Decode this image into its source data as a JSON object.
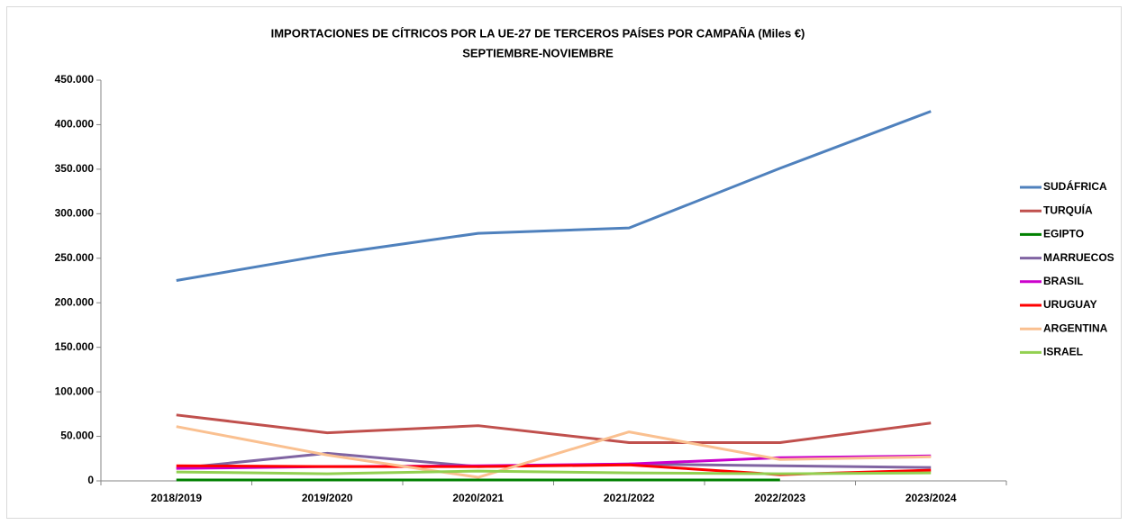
{
  "chart_data": {
    "type": "line",
    "title": "IMPORTACIONES DE CÍTRICOS POR LA UE-27  DE TERCEROS PAÍSES POR CAMPAÑA  (Miles €)",
    "subtitle": "SEPTIEMBRE-NOVIEMBRE",
    "categories": [
      "2018/2019",
      "2019/2020",
      "2020/2021",
      "2021/2022",
      "2022/2023",
      "2023/2024"
    ],
    "series": [
      {
        "name": "SUDÁFRICA",
        "color": "#4f81bd",
        "values": [
          225000,
          254000,
          278000,
          284000,
          351000,
          415000
        ]
      },
      {
        "name": "TURQUÍA",
        "color": "#c0504d",
        "values": [
          74000,
          54000,
          62000,
          43000,
          43000,
          65000
        ]
      },
      {
        "name": "EGIPTO",
        "color": "#008000",
        "values": [
          1000,
          1000,
          1000,
          1000,
          1000,
          null
        ]
      },
      {
        "name": "MARRUECOS",
        "color": "#8064a2",
        "values": [
          14000,
          31000,
          16000,
          19000,
          17000,
          15000
        ]
      },
      {
        "name": "BRASIL",
        "color": "#cc00cc",
        "values": [
          14000,
          16000,
          17000,
          19000,
          26000,
          28000
        ]
      },
      {
        "name": "URUGUAY",
        "color": "#ff0000",
        "values": [
          17000,
          16000,
          16000,
          18000,
          7000,
          12000
        ]
      },
      {
        "name": "ARGENTINA",
        "color": "#fac090",
        "values": [
          61000,
          29000,
          4000,
          55000,
          24000,
          27000
        ]
      },
      {
        "name": "ISRAEL",
        "color": "#92d050",
        "values": [
          10000,
          8000,
          11000,
          9000,
          8000,
          9000
        ]
      }
    ],
    "ylim": [
      0,
      450000
    ],
    "yticks": [
      0,
      {
        "value": 50000,
        "label": "50.000"
      },
      {
        "value": 100000,
        "label": "100.000"
      },
      {
        "value": 150000,
        "label": "150.000"
      },
      {
        "value": 200000,
        "label": "200.000"
      },
      {
        "value": 250000,
        "label": "250.000"
      },
      {
        "value": 300000,
        "label": "300.000"
      },
      {
        "value": 350000,
        "label": "350.000"
      },
      {
        "value": 400000,
        "label": "400.000"
      },
      {
        "value": 450000,
        "label": "450.000"
      }
    ],
    "grid": false,
    "legend": "right"
  }
}
